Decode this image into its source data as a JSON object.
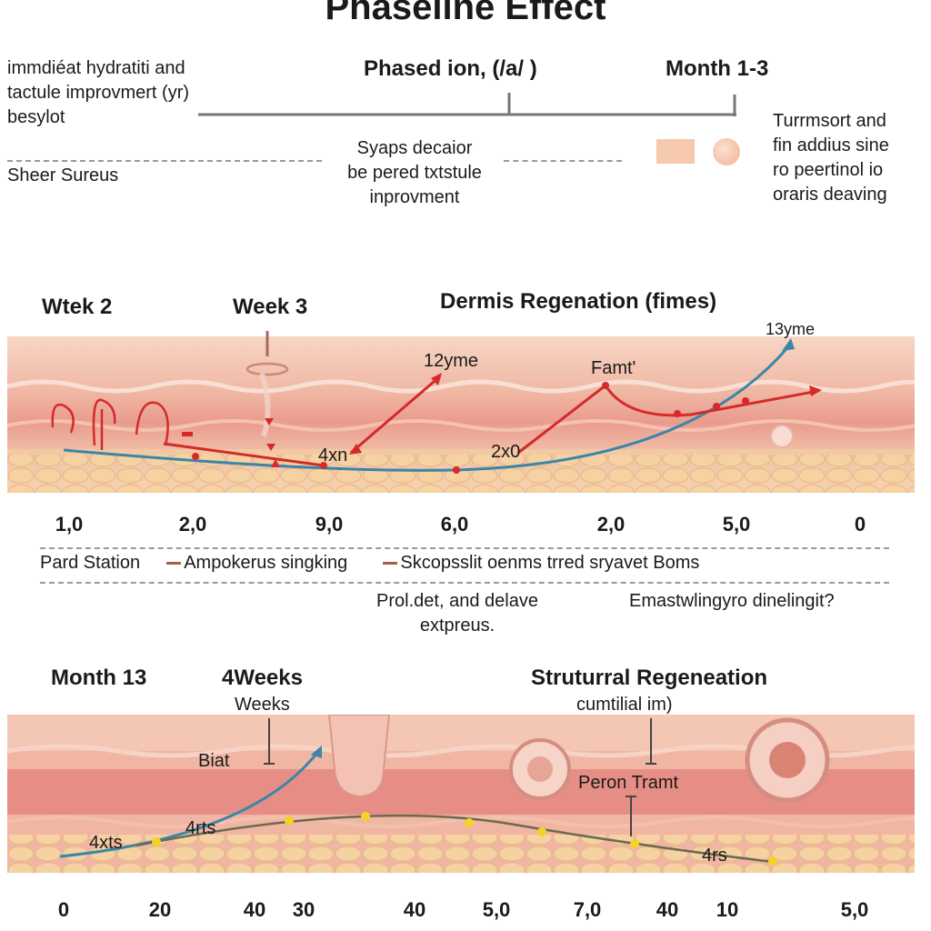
{
  "title": "Phaseline Effect",
  "top": {
    "left_text": [
      "immdiéat hydratiti and",
      "tactule improvmert (yr)",
      "besylot"
    ],
    "sheer_label": "Sheer  Sureus",
    "phase_label": "Phased ion, (/a/ )",
    "month_label": "Month 1-3",
    "center_note": [
      "Syaps decaior",
      "be pered txtstule",
      "inprovment"
    ],
    "right_note": [
      "Turrmsort and",
      "fin addius sine",
      "ro peertinol io",
      "oraris deaving"
    ],
    "swatch_colors": [
      "#f6c9ad",
      "#f2b28f"
    ]
  },
  "panel1": {
    "week2": "Wtek 2",
    "week3": "Week 3",
    "heading": "Dermis Regenation (fimes)",
    "labels": {
      "l13yme": "13yme",
      "l12yme": "12yme",
      "lfamt": "Famt'",
      "l4xn": "4xn",
      "l2x0": "2x0"
    },
    "ticks": [
      "1,0",
      "2,0",
      "9,0",
      "6,0",
      "2,0",
      "5,0",
      "0"
    ]
  },
  "legend": {
    "items": [
      "Pard Station",
      "Ampokerus singking",
      "Skcopsslit oenms trred sryavet Boms"
    ],
    "note_center": [
      "Prol.det, and delave",
      "extpreus."
    ],
    "note_right": "Emastwlingyro dinelingit?"
  },
  "panel2": {
    "month13": "Month 13",
    "weeks4": "4Weeks",
    "weeks": "Weeks",
    "heading": "Struturral Regeneation",
    "subheading": "cumtilial im)",
    "biat": "Biat",
    "peron": "Peron  Tramt",
    "label_a": "4xts",
    "label_b": "4rts",
    "label_c": "4rs",
    "ticks": [
      "0",
      "20",
      "40",
      "30",
      "40",
      "5,0",
      "7,0",
      "40",
      "10",
      "5,0"
    ]
  },
  "colors": {
    "red_line": "#d42a2a",
    "blue_line": "#3b86a8",
    "olive_line": "#6b6a52",
    "yellow_dot": "#f2d422",
    "skin_top": "#f4c7b3",
    "skin_band": "#e98f86",
    "fat_layer": "#f3cf9e"
  }
}
